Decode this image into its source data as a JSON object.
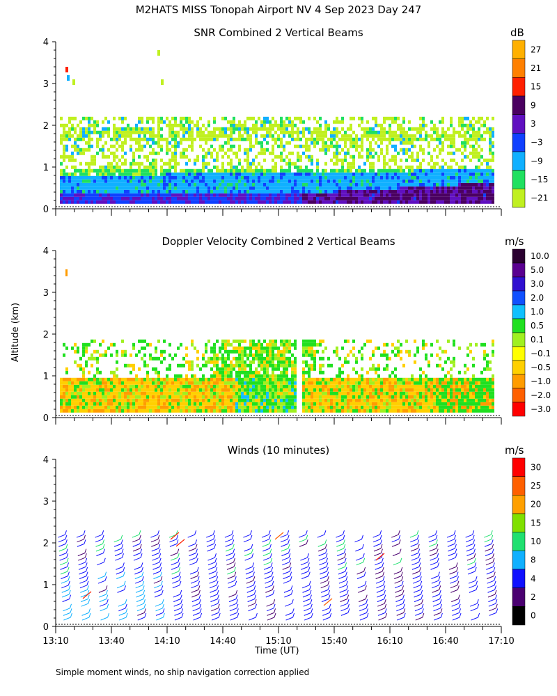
{
  "page_title": "M2HATS MISS Tonopah Airport NV   4 Sep 2023 Day 247",
  "ylabel": "Altitude (km)",
  "xlabel": "Time (UT)",
  "footnote": "Simple moment winds, no ship navigation correction applied",
  "chart_data": [
    {
      "type": "heatmap",
      "title": "SNR Combined 2 Vertical Beams",
      "xlabel": "Time (UT)",
      "ylabel": "Altitude (km)",
      "x_ticks": [
        "13:10",
        "13:40",
        "14:10",
        "14:40",
        "15:10",
        "15:40",
        "16:10",
        "16:40",
        "17:10"
      ],
      "y_ticks": [
        "0",
        "1",
        "2",
        "3",
        "4"
      ],
      "ylim": [
        0,
        4
      ],
      "colorbar": {
        "unit": "dB",
        "labels": [
          "27",
          "21",
          "15",
          "9",
          "3",
          "−3",
          "−9",
          "−15",
          "−21"
        ],
        "colors": [
          "#ffb000",
          "#ff8000",
          "#ff2000",
          "#4a0060",
          "#6010c0",
          "#1040ff",
          "#10b0ff",
          "#20e060",
          "#c0f020"
        ]
      },
      "description_layers": [
        {
          "from_km": 0.1,
          "to_km": 0.35,
          "level": "-3 to 3 dB near surface"
        },
        {
          "from_km": 0.35,
          "to_km": 0.8,
          "level": "-9 to -3 dB"
        },
        {
          "from_km": 0.8,
          "to_km": 2.2,
          "level": "-21 to -15 dB patchy"
        }
      ]
    },
    {
      "type": "heatmap",
      "title": "Doppler Velocity Combined 2 Vertical Beams",
      "xlabel": "Time (UT)",
      "ylabel": "Altitude (km)",
      "x_ticks": [
        "13:10",
        "13:40",
        "14:10",
        "14:40",
        "15:10",
        "15:40",
        "16:10",
        "16:40",
        "17:10"
      ],
      "y_ticks": [
        "0",
        "1",
        "2",
        "3",
        "4"
      ],
      "ylim": [
        0,
        4
      ],
      "colorbar": {
        "unit": "m/s",
        "labels": [
          "10.0",
          "5.0",
          "3.0",
          "2.0",
          "1.0",
          "0.5",
          "0.1",
          "−0.1",
          "−0.5",
          "−1.0",
          "−2.0",
          "−3.0"
        ],
        "colors": [
          "#2a0030",
          "#5a0090",
          "#3010d0",
          "#1050ff",
          "#10c0ff",
          "#20e020",
          "#a0f020",
          "#ffff00",
          "#ffd000",
          "#ff9c00",
          "#ff6000",
          "#ff0000"
        ]
      }
    },
    {
      "type": "scatter",
      "title": "Winds (10 minutes)",
      "xlabel": "Time (UT)",
      "ylabel": "Altitude (km)",
      "x_ticks": [
        "13:10",
        "13:40",
        "14:10",
        "14:40",
        "15:10",
        "15:40",
        "16:10",
        "16:40",
        "17:10"
      ],
      "y_ticks": [
        "0",
        "1",
        "2",
        "3",
        "4"
      ],
      "ylim": [
        0,
        4
      ],
      "colorbar": {
        "unit": "m/s",
        "labels": [
          "30",
          "25",
          "20",
          "15",
          "10",
          "8",
          "4",
          "2",
          "0"
        ],
        "colors": [
          "#ff0000",
          "#ff6000",
          "#ffa000",
          "#80e000",
          "#20e070",
          "#10b0ff",
          "#1010ff",
          "#4a0070",
          "#000000"
        ]
      }
    }
  ]
}
